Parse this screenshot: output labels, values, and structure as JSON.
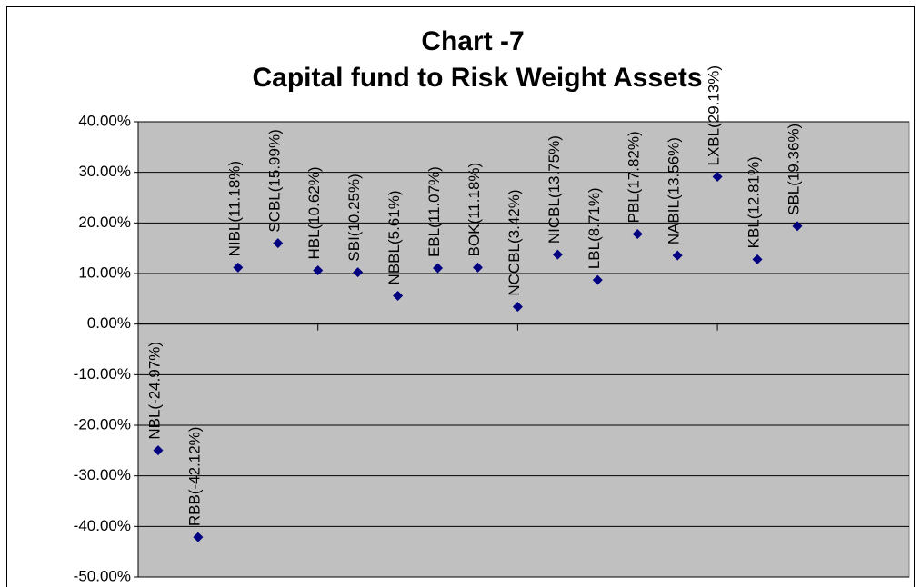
{
  "chart_data": {
    "type": "scatter",
    "title": "Chart -7",
    "subtitle": "Capital fund to Risk Weight Assets",
    "x": [
      1,
      2,
      3,
      4,
      5,
      6,
      7,
      8,
      9,
      10,
      11,
      12,
      13,
      14,
      15,
      16,
      17
    ],
    "values": [
      -24.97,
      -42.12,
      11.18,
      15.99,
      10.62,
      10.25,
      5.61,
      11.07,
      11.18,
      3.42,
      13.75,
      8.71,
      17.82,
      13.56,
      29.13,
      12.81,
      19.36
    ],
    "value_labels": [
      "NBL(-24.97%)",
      "RBB(-42.12%)",
      "NIBL(11.18%)",
      "SCBL(15.99%)",
      "HBL(10.62%)",
      "SBI(10.25%)",
      "NBBL(5.61%)",
      "EBL(11.07%)",
      "BOK(11.18%)",
      "NCCBL(3.42%)",
      "NICBL(13.75%)",
      "LBL(8.71%)",
      "PBL(17.82%)",
      "NABIL(13.56%)",
      "LXBL(29.13%)",
      "KBL(12.81%)",
      "SBL(19.36%)"
    ],
    "color": "#000080",
    "xlim": [
      0.5,
      19.8
    ],
    "xticks": [
      5,
      10,
      15
    ],
    "ylim": [
      -50,
      40
    ],
    "yticks": [
      {
        "value": 40,
        "label": "40.00%"
      },
      {
        "value": 30,
        "label": "30.00%"
      },
      {
        "value": 20,
        "label": "20.00%"
      },
      {
        "value": 10,
        "label": "10.00%"
      },
      {
        "value": 0,
        "label": "0.00%"
      },
      {
        "value": -10,
        "label": "-10.00%"
      },
      {
        "value": -20,
        "label": "-20.00%"
      },
      {
        "value": -30,
        "label": "-30.00%"
      },
      {
        "value": -40,
        "label": "-40.00%"
      },
      {
        "value": -50,
        "label": "-50.00%"
      }
    ],
    "grid": true
  }
}
